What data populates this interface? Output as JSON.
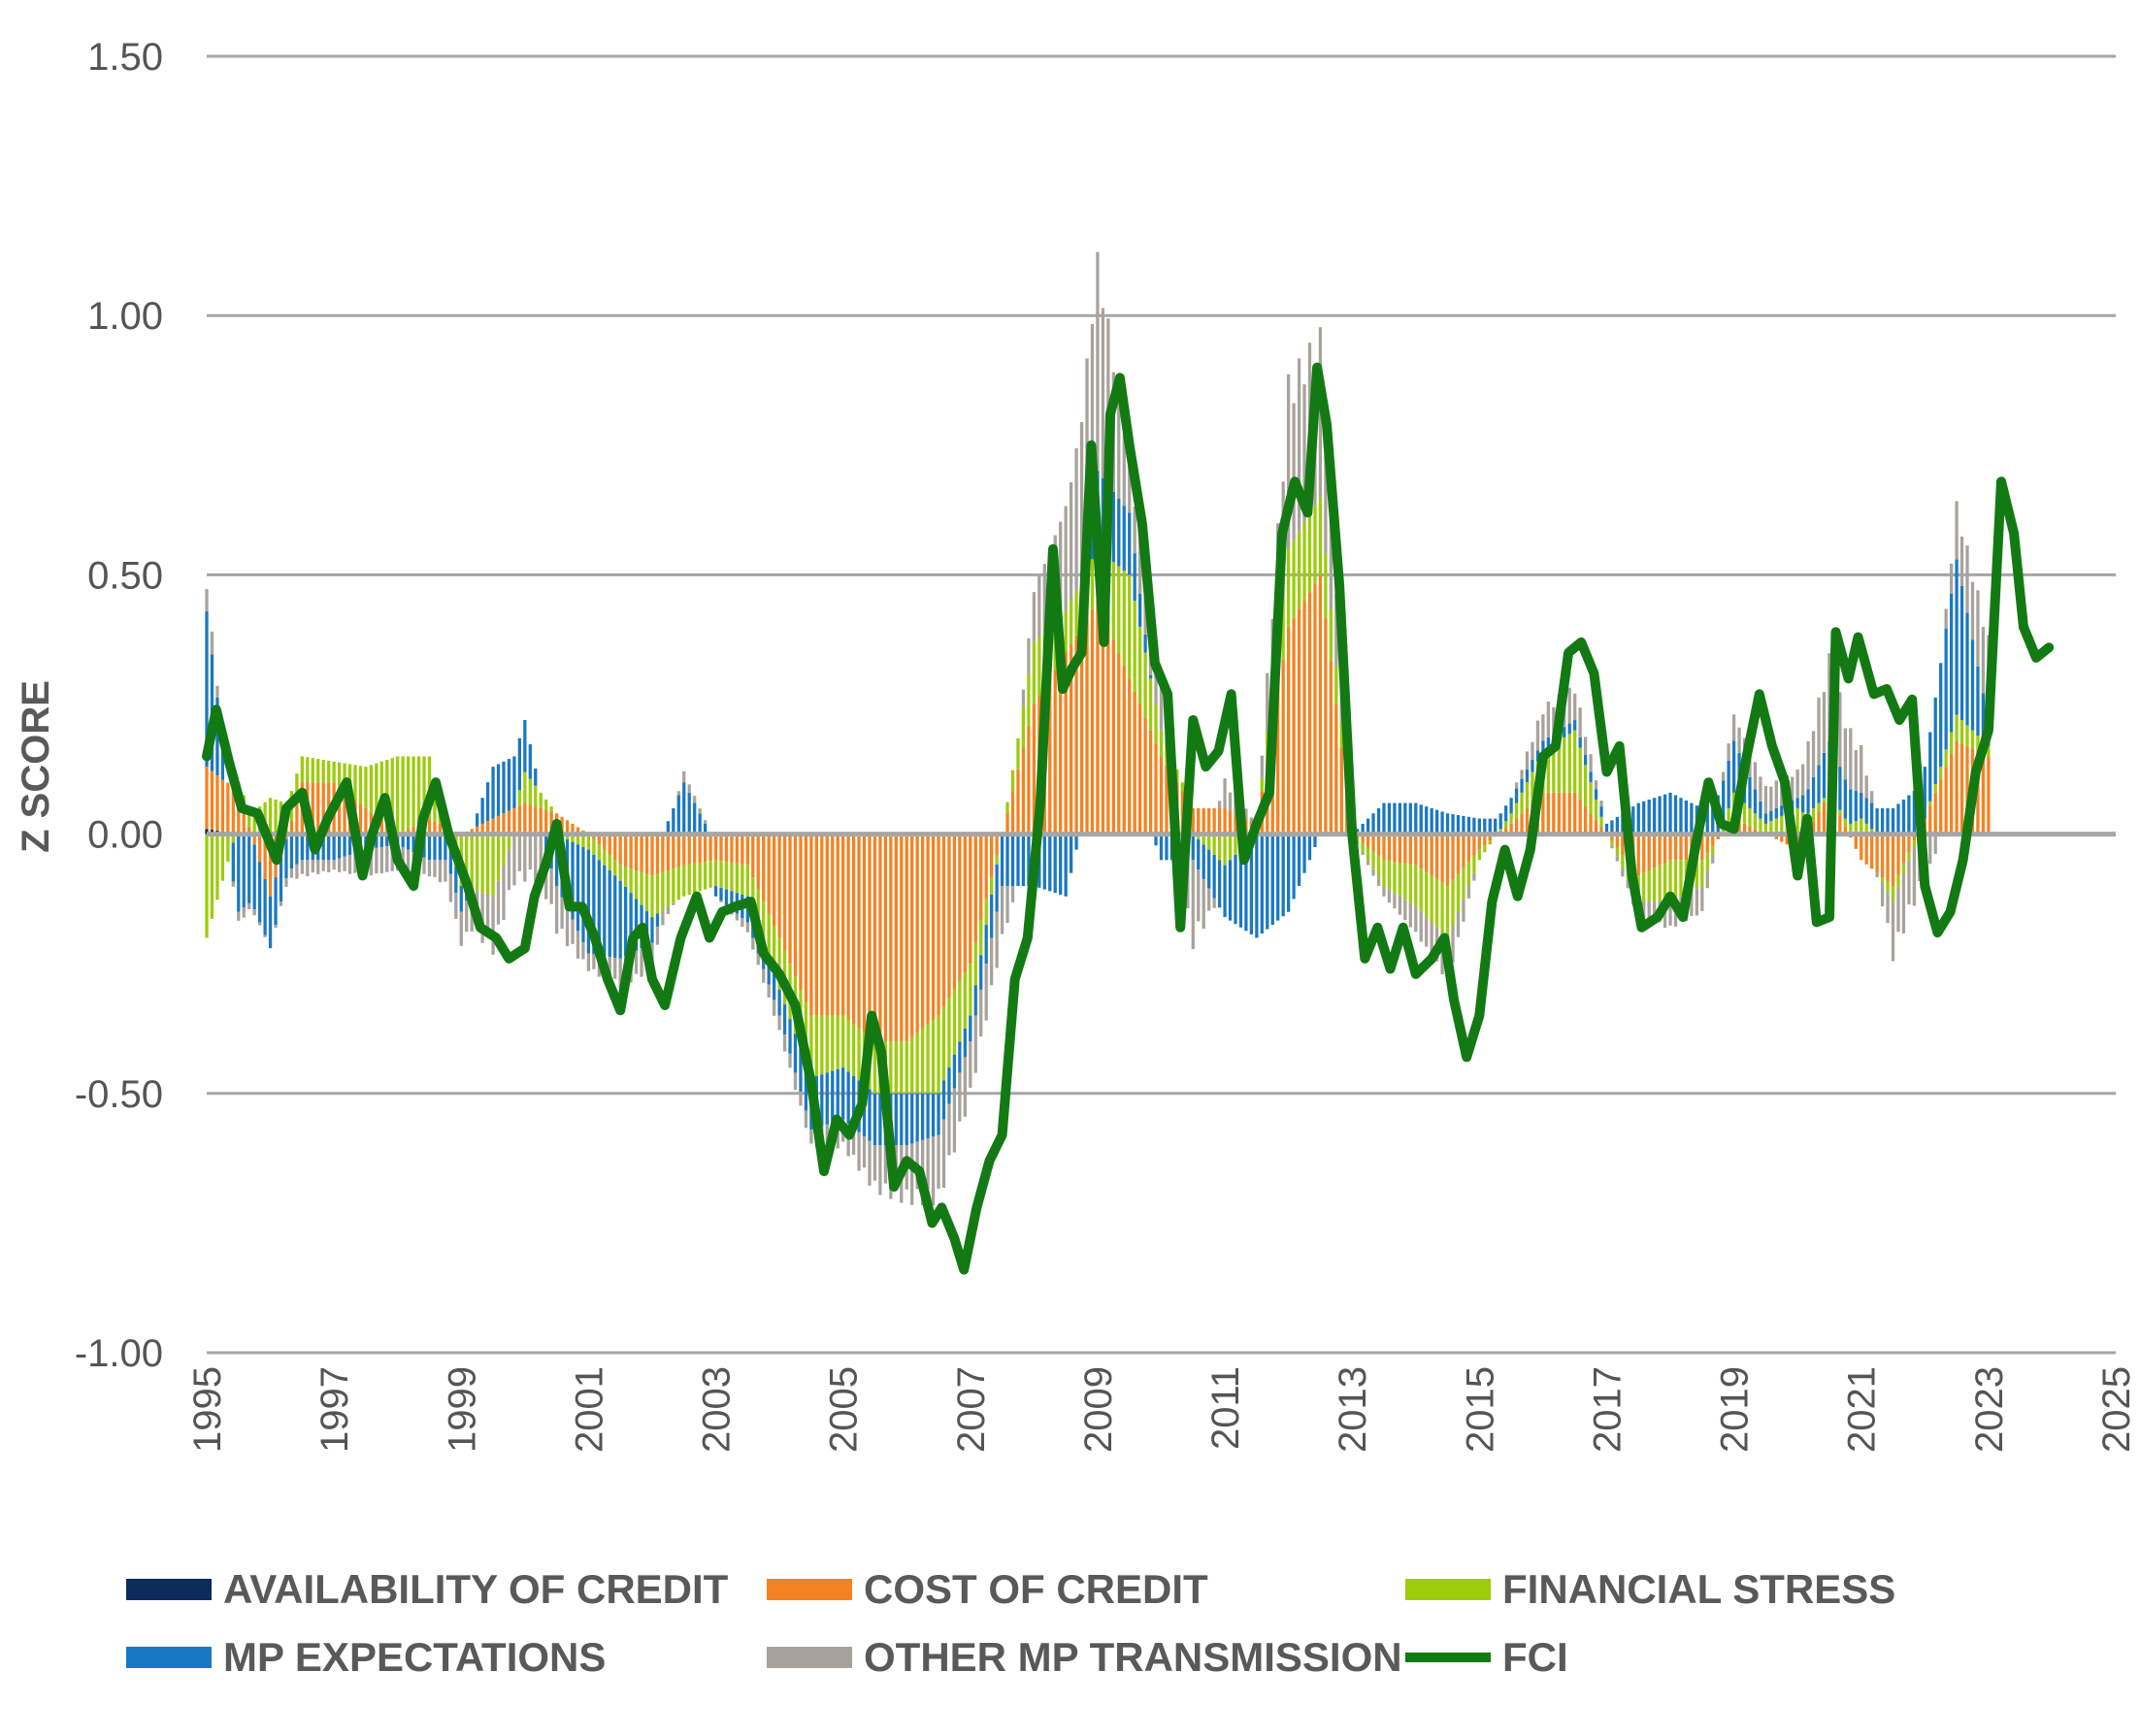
{
  "chart_data": {
    "type": "bar",
    "stacked": true,
    "title": "",
    "xlabel": "",
    "ylabel": "Z SCORE",
    "ylim": [
      -1.0,
      1.5
    ],
    "xlim": [
      1995,
      2025
    ],
    "y_ticks": [
      "1.50",
      "1.00",
      "0.50",
      "0.00",
      "-0.50",
      "-1.00"
    ],
    "x_ticks": [
      "1995",
      "1997",
      "1999",
      "2001",
      "2003",
      "2005",
      "2007",
      "2009",
      "2011",
      "2013",
      "2015",
      "2017",
      "2019",
      "2021",
      "2023",
      "2025"
    ],
    "grid": true,
    "legend_position": "bottom",
    "colors": {
      "availability": "#0b2b5c",
      "cost": "#f58220",
      "stress": "#9ccc0a",
      "mp_expectations": "#1a78c2",
      "other_mp": "#a8a29c",
      "fci": "#137a13",
      "grid": "#a6a6a6"
    },
    "x": [
      1995.0,
      1995.5,
      1996.0,
      1996.5,
      1997.0,
      1997.5,
      1998.0,
      1998.5,
      1999.0,
      1999.5,
      2000.0,
      2000.5,
      2001.0,
      2001.5,
      2002.0,
      2002.5,
      2003.0,
      2003.5,
      2004.0,
      2004.5,
      2005.0,
      2005.5,
      2006.0,
      2006.5,
      2007.0,
      2007.5,
      2008.0,
      2008.5,
      2009.0,
      2009.5,
      2010.0,
      2010.5,
      2011.0,
      2011.5,
      2012.0,
      2012.5,
      2013.0,
      2013.5,
      2014.0,
      2014.5,
      2015.0,
      2015.5,
      2016.0,
      2016.5,
      2017.0,
      2017.5,
      2018.0,
      2018.5,
      2019.0,
      2019.5,
      2020.0,
      2020.5,
      2021.0,
      2021.5,
      2022.0,
      2022.5,
      2023.0
    ],
    "series": [
      {
        "name": "AVAILABILITY OF CREDIT",
        "values": [
          0.01,
          0.0,
          0.0,
          0.0,
          0.0,
          0.0,
          0.0,
          0.0,
          0.0,
          0.0,
          0.0,
          0.0,
          0.0,
          0.0,
          0.0,
          0.0,
          0.0,
          0.0,
          0.0,
          0.0,
          0.0,
          0.0,
          0.0,
          0.0,
          0.0,
          0.0,
          0.0,
          0.0,
          0.0,
          0.0,
          0.0,
          0.0,
          0.0,
          0.0,
          0.0,
          0.0,
          0.0,
          0.0,
          0.0,
          0.0,
          0.0,
          0.0,
          0.0,
          0.0,
          0.0,
          0.0,
          0.0,
          0.0,
          0.0,
          0.0,
          0.0,
          0.0,
          0.0,
          0.0,
          0.0,
          0.0,
          0.0
        ]
      },
      {
        "name": "COST OF CREDIT",
        "values": [
          0.12,
          0.08,
          -0.12,
          0.1,
          0.1,
          0.05,
          0.0,
          0.03,
          0.0,
          0.03,
          0.06,
          0.04,
          0.0,
          -0.06,
          -0.08,
          -0.06,
          -0.05,
          -0.06,
          -0.2,
          -0.35,
          -0.35,
          -0.4,
          -0.4,
          -0.35,
          -0.25,
          0.0,
          0.25,
          0.35,
          0.45,
          0.3,
          0.15,
          0.05,
          0.05,
          0.02,
          0.4,
          0.5,
          0.0,
          -0.05,
          -0.06,
          -0.1,
          -0.03,
          0.02,
          0.08,
          0.08,
          0.0,
          -0.08,
          -0.05,
          -0.05,
          0.03,
          0.0,
          -0.03,
          0.08,
          -0.05,
          -0.1,
          0.03,
          0.18,
          0.15
        ]
      },
      {
        "name": "FINANCIAL STRESS",
        "values": [
          -0.2,
          0.02,
          0.07,
          0.05,
          0.04,
          0.08,
          0.15,
          0.12,
          -0.1,
          -0.12,
          0.06,
          0.0,
          -0.03,
          -0.03,
          -0.08,
          -0.06,
          -0.05,
          -0.06,
          -0.1,
          -0.12,
          -0.1,
          -0.1,
          -0.1,
          -0.15,
          -0.1,
          0.0,
          0.12,
          0.08,
          0.1,
          0.2,
          0.05,
          0.0,
          -0.06,
          0.0,
          0.15,
          0.15,
          0.0,
          -0.05,
          -0.08,
          -0.1,
          -0.02,
          0.02,
          0.08,
          0.12,
          0.0,
          -0.05,
          -0.08,
          -0.05,
          0.05,
          0.02,
          0.05,
          0.0,
          0.03,
          -0.03,
          0.0,
          0.05,
          0.02
        ]
      },
      {
        "name": "MP EXPECTATIONS",
        "values": [
          0.3,
          -0.15,
          -0.1,
          -0.05,
          -0.05,
          -0.03,
          -0.02,
          -0.05,
          -0.05,
          0.1,
          0.1,
          -0.1,
          -0.2,
          -0.15,
          -0.05,
          0.1,
          -0.02,
          -0.05,
          -0.05,
          -0.1,
          -0.1,
          -0.1,
          -0.1,
          -0.08,
          -0.05,
          -0.1,
          -0.1,
          -0.12,
          0.15,
          0.12,
          -0.05,
          -0.05,
          -0.1,
          -0.2,
          -0.15,
          0.0,
          0.0,
          0.06,
          0.06,
          0.04,
          0.03,
          0.03,
          0.02,
          0.02,
          0.02,
          0.06,
          0.08,
          0.05,
          0.1,
          0.02,
          0.02,
          0.1,
          0.05,
          0.05,
          0.1,
          0.3,
          0.05
        ]
      },
      {
        "name": "OTHER MP TRANSMISSION",
        "values": [
          0.05,
          -0.02,
          0.0,
          -0.03,
          -0.02,
          -0.05,
          -0.05,
          -0.03,
          -0.06,
          -0.1,
          -0.08,
          -0.08,
          -0.03,
          -0.05,
          -0.05,
          0.02,
          0.0,
          -0.02,
          -0.03,
          -0.03,
          -0.05,
          -0.08,
          -0.1,
          -0.12,
          -0.1,
          -0.1,
          0.1,
          0.2,
          0.4,
          0.1,
          0.1,
          -0.15,
          0.05,
          0.0,
          0.3,
          0.3,
          0.0,
          -0.02,
          -0.05,
          -0.08,
          0.0,
          0.0,
          0.06,
          0.06,
          0.0,
          -0.03,
          -0.05,
          -0.05,
          0.05,
          0.05,
          0.05,
          0.15,
          0.08,
          -0.1,
          -0.1,
          0.1,
          0.15
        ]
      },
      {
        "name": "FCI",
        "type": "line",
        "points": [
          [
            1995.0,
            0.15
          ],
          [
            1995.15,
            0.24
          ],
          [
            1995.35,
            0.14
          ],
          [
            1995.55,
            0.05
          ],
          [
            1995.8,
            0.04
          ],
          [
            1996.1,
            -0.05
          ],
          [
            1996.25,
            0.05
          ],
          [
            1996.5,
            0.08
          ],
          [
            1996.7,
            -0.03
          ],
          [
            1996.9,
            0.03
          ],
          [
            1997.2,
            0.1
          ],
          [
            1997.45,
            -0.08
          ],
          [
            1997.6,
            0.0
          ],
          [
            1997.8,
            0.07
          ],
          [
            1998.0,
            -0.05
          ],
          [
            1998.25,
            -0.1
          ],
          [
            1998.4,
            0.03
          ],
          [
            1998.6,
            0.1
          ],
          [
            1998.8,
            0.0
          ],
          [
            1999.1,
            -0.1
          ],
          [
            1999.3,
            -0.18
          ],
          [
            1999.55,
            -0.2
          ],
          [
            1999.75,
            -0.24
          ],
          [
            2000.0,
            -0.22
          ],
          [
            2000.15,
            -0.12
          ],
          [
            2000.35,
            -0.05
          ],
          [
            2000.5,
            0.02
          ],
          [
            2000.7,
            -0.14
          ],
          [
            2000.9,
            -0.14
          ],
          [
            2001.1,
            -0.2
          ],
          [
            2001.3,
            -0.28
          ],
          [
            2001.5,
            -0.34
          ],
          [
            2001.7,
            -0.2
          ],
          [
            2001.85,
            -0.18
          ],
          [
            2002.0,
            -0.28
          ],
          [
            2002.2,
            -0.33
          ],
          [
            2002.45,
            -0.2
          ],
          [
            2002.7,
            -0.12
          ],
          [
            2002.9,
            -0.2
          ],
          [
            2003.1,
            -0.15
          ],
          [
            2003.3,
            -0.14
          ],
          [
            2003.55,
            -0.13
          ],
          [
            2003.75,
            -0.23
          ],
          [
            2004.0,
            -0.27
          ],
          [
            2004.25,
            -0.33
          ],
          [
            2004.5,
            -0.48
          ],
          [
            2004.7,
            -0.65
          ],
          [
            2004.9,
            -0.55
          ],
          [
            2005.1,
            -0.58
          ],
          [
            2005.3,
            -0.52
          ],
          [
            2005.45,
            -0.35
          ],
          [
            2005.6,
            -0.42
          ],
          [
            2005.8,
            -0.68
          ],
          [
            2006.0,
            -0.63
          ],
          [
            2006.2,
            -0.65
          ],
          [
            2006.4,
            -0.75
          ],
          [
            2006.55,
            -0.72
          ],
          [
            2006.75,
            -0.78
          ],
          [
            2006.9,
            -0.84
          ],
          [
            2007.1,
            -0.72
          ],
          [
            2007.3,
            -0.63
          ],
          [
            2007.5,
            -0.58
          ],
          [
            2007.7,
            -0.28
          ],
          [
            2007.9,
            -0.2
          ],
          [
            2008.1,
            0.06
          ],
          [
            2008.3,
            0.55
          ],
          [
            2008.45,
            0.28
          ],
          [
            2008.6,
            0.32
          ],
          [
            2008.75,
            0.35
          ],
          [
            2008.9,
            0.75
          ],
          [
            2009.1,
            0.37
          ],
          [
            2009.2,
            0.81
          ],
          [
            2009.35,
            0.88
          ],
          [
            2009.5,
            0.75
          ],
          [
            2009.7,
            0.6
          ],
          [
            2009.9,
            0.33
          ],
          [
            2010.1,
            0.27
          ],
          [
            2010.3,
            -0.18
          ],
          [
            2010.5,
            0.22
          ],
          [
            2010.7,
            0.13
          ],
          [
            2010.9,
            0.16
          ],
          [
            2011.1,
            0.27
          ],
          [
            2011.3,
            -0.05
          ],
          [
            2011.5,
            0.02
          ],
          [
            2011.7,
            0.08
          ],
          [
            2011.9,
            0.58
          ],
          [
            2012.1,
            0.68
          ],
          [
            2012.3,
            0.62
          ],
          [
            2012.45,
            0.9
          ],
          [
            2012.6,
            0.79
          ],
          [
            2012.8,
            0.48
          ],
          [
            2013.0,
            0.0
          ],
          [
            2013.2,
            -0.24
          ],
          [
            2013.4,
            -0.18
          ],
          [
            2013.6,
            -0.26
          ],
          [
            2013.8,
            -0.18
          ],
          [
            2014.0,
            -0.27
          ],
          [
            2014.25,
            -0.24
          ],
          [
            2014.45,
            -0.2
          ],
          [
            2014.6,
            -0.32
          ],
          [
            2014.8,
            -0.43
          ],
          [
            2015.0,
            -0.35
          ],
          [
            2015.2,
            -0.13
          ],
          [
            2015.4,
            -0.03
          ],
          [
            2015.6,
            -0.12
          ],
          [
            2015.8,
            -0.03
          ],
          [
            2016.0,
            0.15
          ],
          [
            2016.2,
            0.17
          ],
          [
            2016.4,
            0.35
          ],
          [
            2016.6,
            0.37
          ],
          [
            2016.8,
            0.31
          ],
          [
            2017.0,
            0.12
          ],
          [
            2017.2,
            0.17
          ],
          [
            2017.4,
            -0.08
          ],
          [
            2017.55,
            -0.18
          ],
          [
            2017.8,
            -0.16
          ],
          [
            2018.0,
            -0.12
          ],
          [
            2018.2,
            -0.16
          ],
          [
            2018.4,
            -0.02
          ],
          [
            2018.6,
            0.1
          ],
          [
            2018.8,
            0.02
          ],
          [
            2019.0,
            0.01
          ],
          [
            2019.2,
            0.15
          ],
          [
            2019.4,
            0.27
          ],
          [
            2019.6,
            0.17
          ],
          [
            2019.8,
            0.1
          ],
          [
            2020.0,
            -0.08
          ],
          [
            2020.15,
            0.03
          ],
          [
            2020.3,
            -0.17
          ],
          [
            2020.5,
            -0.16
          ],
          [
            2020.6,
            0.39
          ],
          [
            2020.8,
            0.3
          ],
          [
            2020.95,
            0.38
          ],
          [
            2021.2,
            0.27
          ],
          [
            2021.4,
            0.28
          ],
          [
            2021.6,
            0.22
          ],
          [
            2021.8,
            0.26
          ],
          [
            2022.0,
            -0.1
          ],
          [
            2022.2,
            -0.19
          ],
          [
            2022.4,
            -0.15
          ],
          [
            2022.6,
            -0.05
          ],
          [
            2022.8,
            0.12
          ],
          [
            2023.0,
            0.2
          ],
          [
            2023.2,
            0.68
          ],
          [
            2023.4,
            0.58
          ],
          [
            2023.55,
            0.4
          ],
          [
            2023.75,
            0.34
          ],
          [
            2023.95,
            0.36
          ]
        ]
      }
    ]
  },
  "axis": {
    "ylabel": "Z SCORE",
    "y_ticks": [
      "1.50",
      "1.00",
      "0.50",
      "0.00",
      "-0.50",
      "-1.00"
    ],
    "x_ticks": [
      "1995",
      "1997",
      "1999",
      "2001",
      "2003",
      "2005",
      "2007",
      "2009",
      "2011",
      "2013",
      "2015",
      "2017",
      "2019",
      "2021",
      "2023",
      "2025"
    ]
  },
  "legend": {
    "availability": "AVAILABILITY OF CREDIT",
    "cost": "COST OF CREDIT",
    "stress": "FINANCIAL STRESS",
    "mp_expectations": "MP EXPECTATIONS",
    "other_mp": "OTHER MP TRANSMISSION",
    "fci": "FCI"
  }
}
